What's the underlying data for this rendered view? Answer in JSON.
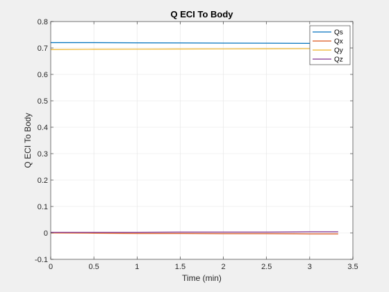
{
  "chart_data": {
    "type": "line",
    "title": "Q ECI To Body",
    "xlabel": "Time (min)",
    "ylabel": "Q ECI To Body",
    "xlim": [
      0,
      3.5
    ],
    "ylim": [
      -0.1,
      0.8
    ],
    "xticks": [
      0,
      0.5,
      1,
      1.5,
      2,
      2.5,
      3,
      3.5
    ],
    "xtick_labels": [
      "0",
      "0.5",
      "1",
      "1.5",
      "2",
      "2.5",
      "3",
      "3.5"
    ],
    "yticks": [
      -0.1,
      0,
      0.1,
      0.2,
      0.3,
      0.4,
      0.5,
      0.6,
      0.7,
      0.8
    ],
    "ytick_labels": [
      "-0.1",
      "0",
      "0.1",
      "0.2",
      "0.3",
      "0.4",
      "0.5",
      "0.6",
      "0.7",
      "0.8"
    ],
    "grid": true,
    "legend_position": "top-right",
    "series": [
      {
        "name": "Qs",
        "color": "#0072BD",
        "x": [
          0,
          0.5,
          1,
          1.5,
          2,
          2.5,
          3,
          3.33
        ],
        "y": [
          0.72,
          0.72,
          0.7195,
          0.719,
          0.7185,
          0.718,
          0.7175,
          0.717
        ]
      },
      {
        "name": "Qx",
        "color": "#D95319",
        "x": [
          0,
          0.5,
          1,
          1.5,
          2,
          2.5,
          3,
          3.33
        ],
        "y": [
          0.0,
          -0.001,
          -0.002,
          -0.002,
          -0.003,
          -0.003,
          -0.004,
          -0.004
        ]
      },
      {
        "name": "Qy",
        "color": "#EDB120",
        "x": [
          0,
          0.5,
          1,
          1.5,
          2,
          2.5,
          3,
          3.33
        ],
        "y": [
          0.694,
          0.695,
          0.6955,
          0.696,
          0.6965,
          0.697,
          0.6975,
          0.698
        ]
      },
      {
        "name": "Qz",
        "color": "#7E2F8E",
        "x": [
          0,
          0.5,
          1,
          1.5,
          2,
          2.5,
          3,
          3.33
        ],
        "y": [
          0.002,
          0.002,
          0.002,
          0.003,
          0.003,
          0.003,
          0.004,
          0.004
        ]
      }
    ]
  }
}
